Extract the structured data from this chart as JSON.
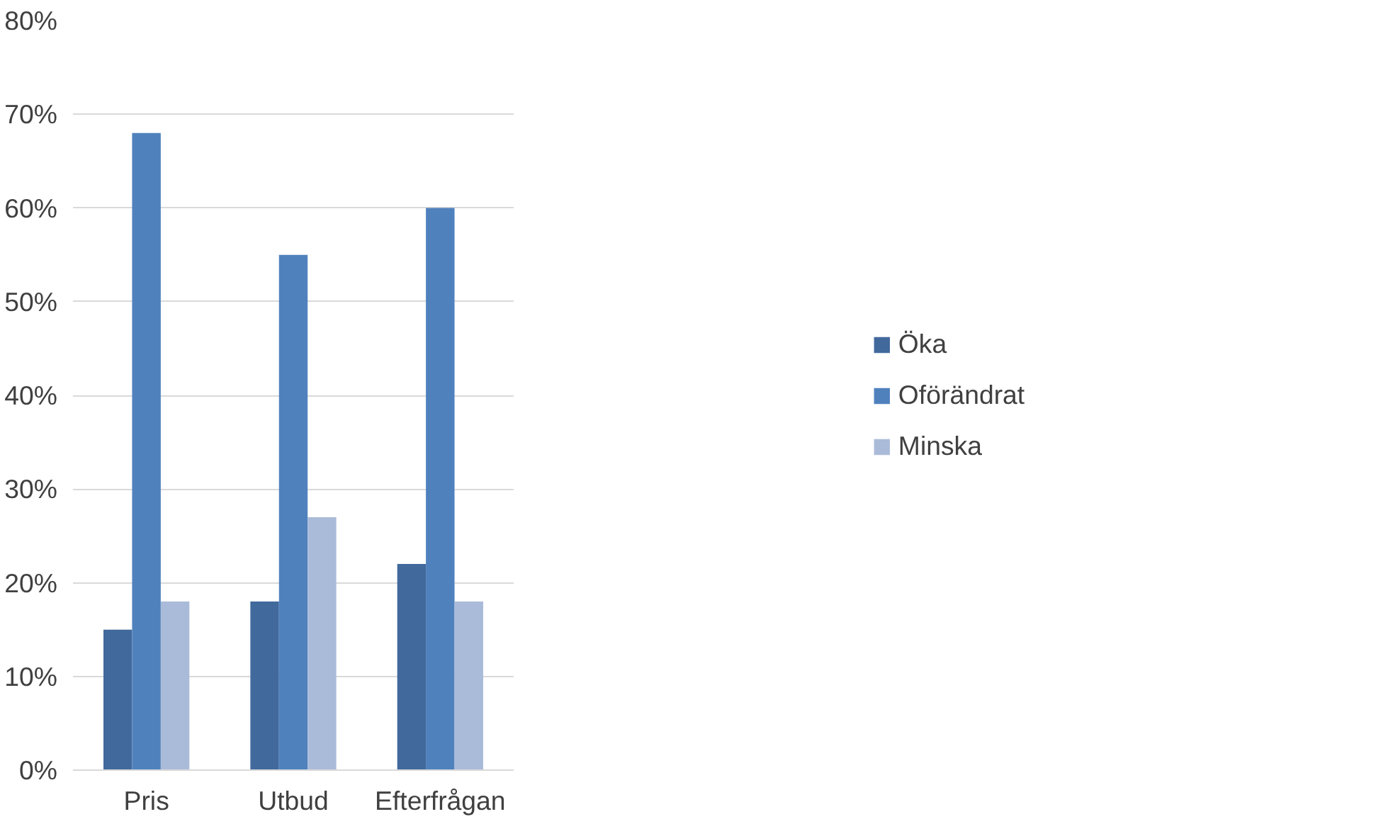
{
  "chart_data": {
    "type": "bar",
    "categories": [
      "Pris",
      "Utbud",
      "Efterfrågan"
    ],
    "series": [
      {
        "name": "Öka",
        "color": "#41699c",
        "values": [
          15,
          18,
          22
        ]
      },
      {
        "name": "Oförändrat",
        "color": "#4f81bd",
        "values": [
          68,
          55,
          60
        ]
      },
      {
        "name": "Minska",
        "color": "#aabbd9",
        "values": [
          18,
          27,
          18
        ]
      }
    ],
    "ylim": [
      0,
      80
    ],
    "yticks": [
      {
        "value": 0,
        "label": "0%"
      },
      {
        "value": 10,
        "label": "10%"
      },
      {
        "value": 20,
        "label": "20%"
      },
      {
        "value": 30,
        "label": "30%"
      },
      {
        "value": 40,
        "label": "40%"
      },
      {
        "value": 50,
        "label": "50%"
      },
      {
        "value": 60,
        "label": "60%"
      },
      {
        "value": 70,
        "label": "70%"
      },
      {
        "value": 80,
        "label": "80%"
      }
    ],
    "grid": "y",
    "legend": "right"
  }
}
